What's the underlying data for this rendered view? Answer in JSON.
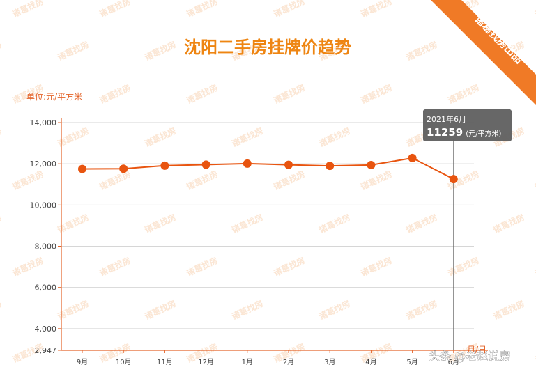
{
  "ribbon": "诸葛找房出品",
  "watermark": "诸葛找房",
  "credit": "头条 @老赵说房",
  "tooltip": {
    "date": "2021年6月",
    "value": "11259",
    "unit": "(元/平方米)"
  },
  "colors": {
    "accent": "#e8540f",
    "title": "#ee8512",
    "ribbon": "#f07a26",
    "tooltip": "#5f5f5f"
  },
  "chart_data": {
    "type": "line",
    "title": "沈阳二手房挂牌价趋势",
    "ylabel": "单位:元/平方米",
    "xlabel": "月/日",
    "categories": [
      "9月",
      "10月",
      "11月",
      "12月",
      "1月",
      "2月",
      "3月",
      "4月",
      "5月",
      "6月"
    ],
    "series": [
      {
        "values": [
          11750,
          11760,
          11910,
          11960,
          12010,
          11950,
          11900,
          11940,
          12280,
          11259
        ]
      }
    ],
    "yticks": [
      "2,947",
      "4,000",
      "6,000",
      "8,000",
      "10,000",
      "12,000",
      "14,000"
    ],
    "ytick_values": [
      2947,
      4000,
      6000,
      8000,
      10000,
      12000,
      14000
    ],
    "ylim": [
      2947,
      14000
    ],
    "grid": true,
    "highlight_index": 9
  }
}
